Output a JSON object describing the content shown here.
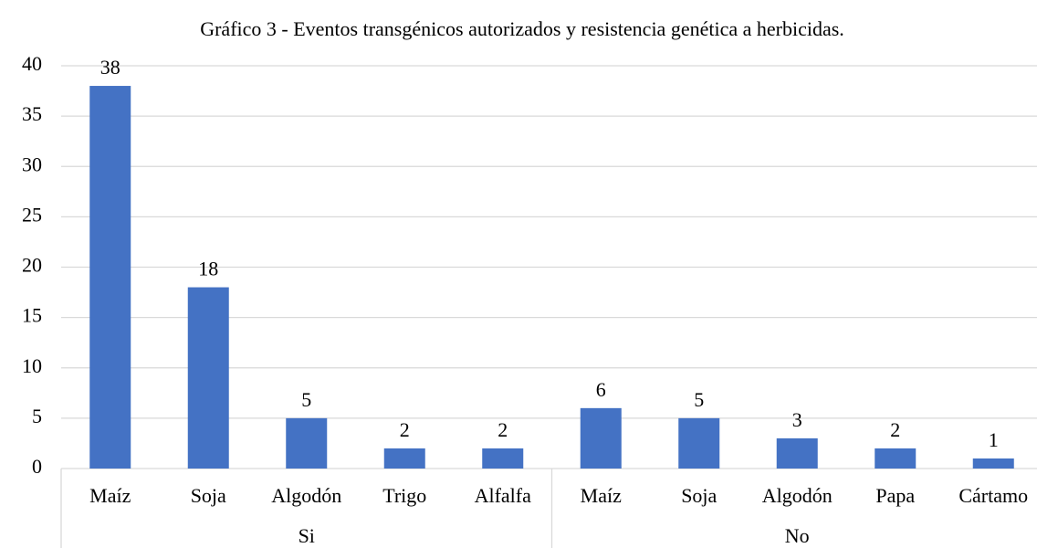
{
  "chart_data": {
    "type": "bar",
    "title": "Gráfico 3 - Eventos transgénicos autorizados y resistencia genética a herbicidas.",
    "groups": [
      {
        "name": "Si",
        "categories": [
          "Maíz",
          "Soja",
          "Algodón",
          "Trigo",
          "Alfalfa"
        ],
        "values": [
          38,
          18,
          5,
          2,
          2
        ]
      },
      {
        "name": "No",
        "categories": [
          "Maíz",
          "Soja",
          "Algodón",
          "Papa",
          "Cártamo"
        ],
        "values": [
          6,
          5,
          3,
          2,
          1
        ]
      }
    ],
    "color": "#4472c4",
    "ylim": [
      0,
      40
    ],
    "yticks": [
      0,
      5,
      10,
      15,
      20,
      25,
      30,
      35,
      40
    ],
    "grid": true
  }
}
